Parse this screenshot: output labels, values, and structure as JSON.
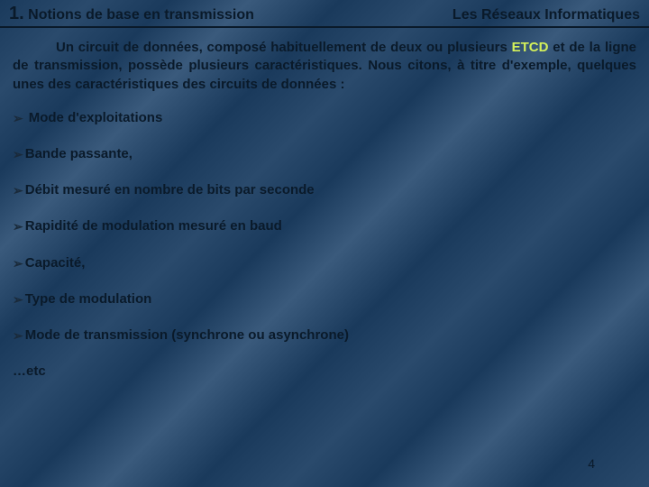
{
  "header": {
    "section_number": "1.",
    "section_title": "Notions de base en transmission",
    "right_title": "Les Réseaux Informatiques"
  },
  "paragraph": {
    "pre": "Un circuit de données, composé habituellement de deux ou plusieurs ",
    "highlight": "ETCD",
    "post": " et de la ligne de transmission, possède plusieurs caractéristiques. Nous citons, à titre d'exemple, quelques unes des caractéristiques des circuits de données :"
  },
  "bullets": [
    "Mode d'exploitations",
    "Bande passante,",
    "Débit mesuré en nombre de bits par seconde",
    "Rapidité de modulation mesuré en baud",
    "Capacité,",
    "Type de modulation",
    "Mode de transmission (synchrone ou asynchrone)"
  ],
  "etc": "…etc",
  "page_number": "4",
  "colors": {
    "text": "#0a1a2a",
    "highlight": "#d4f05a",
    "bg_base": "#1a3a5c"
  },
  "typography": {
    "title_fontsize_pt": 16,
    "number_fontsize_pt": 20,
    "body_fontsize_pt": 15,
    "font_family": "Verdana"
  }
}
